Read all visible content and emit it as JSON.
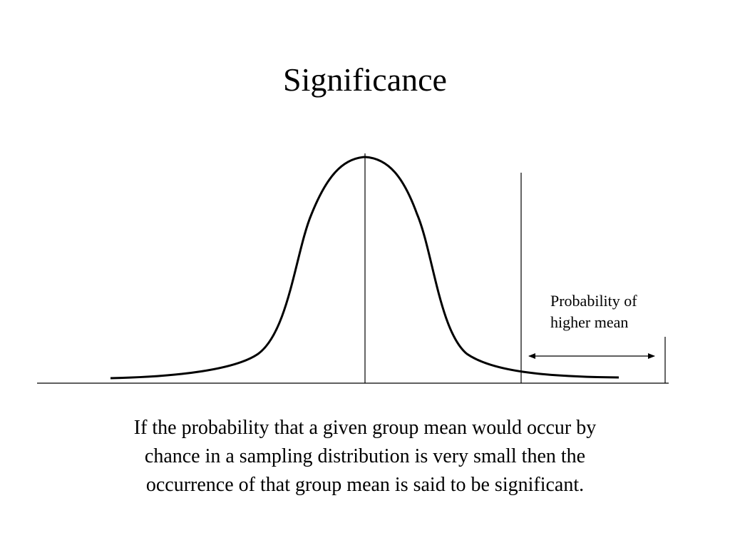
{
  "slide": {
    "title": "Significance"
  },
  "annotation": {
    "lines": [
      "Probability of",
      "higher mean"
    ]
  },
  "caption": {
    "lines": [
      "If the probability that a given group mean would occur by",
      "chance in a sampling distribution is very small then the",
      "occurrence of that group mean is said to be significant."
    ]
  },
  "colors": {
    "ink": "#000000",
    "background": "#ffffff"
  },
  "icons": {
    "arrow": "double-headed-arrow-icon"
  }
}
